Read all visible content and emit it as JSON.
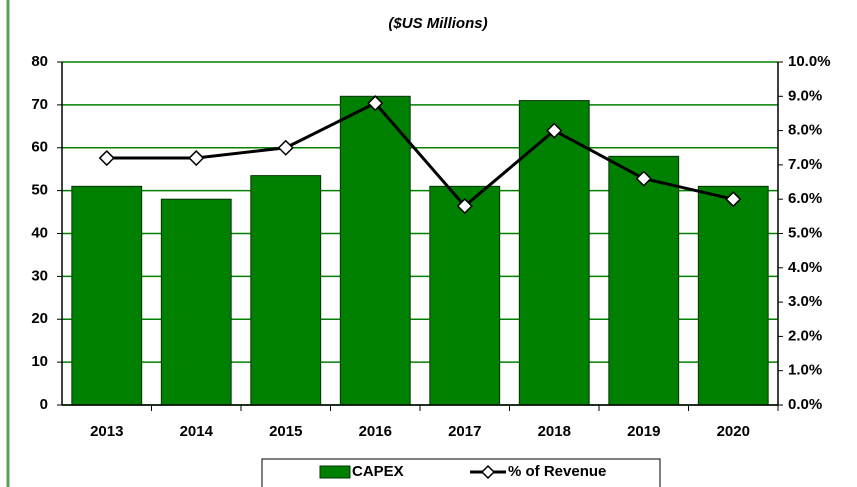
{
  "chart_data": {
    "type": "bar",
    "title": "($US Millions)",
    "categories": [
      "2013",
      "2014",
      "2015",
      "2016",
      "2017",
      "2018",
      "2019",
      "2020"
    ],
    "series": [
      {
        "name": "CAPEX",
        "color": "#008000",
        "values": [
          51,
          48,
          53.5,
          72,
          51,
          71,
          58,
          51
        ]
      },
      {
        "name": "% of Revenue",
        "type": "line",
        "axis": "y2",
        "color": "#000000",
        "values": [
          7.2,
          7.2,
          7.5,
          8.8,
          5.8,
          8.0,
          6.6,
          6.0
        ]
      }
    ],
    "ylim": [
      0,
      80
    ],
    "yticks": [
      0,
      10,
      20,
      30,
      40,
      50,
      60,
      70,
      80
    ],
    "y2lim": [
      0,
      10
    ],
    "y2ticks": [
      {
        "value": 0,
        "label": "0.0%"
      },
      {
        "value": 1,
        "label": "1.0%"
      },
      {
        "value": 2,
        "label": "2.0%"
      },
      {
        "value": 3,
        "label": "3.0%"
      },
      {
        "value": 4,
        "label": "4.0%"
      },
      {
        "value": 5,
        "label": "5.0%"
      },
      {
        "value": 6,
        "label": "6.0%"
      },
      {
        "value": 7,
        "label": "7.0%"
      },
      {
        "value": 8,
        "label": "8.0%"
      },
      {
        "value": 9,
        "label": "9.0%"
      },
      {
        "value": 10,
        "label": "10.0%"
      }
    ],
    "grid": true,
    "grid_color": "#008000",
    "legend": "bottom"
  }
}
